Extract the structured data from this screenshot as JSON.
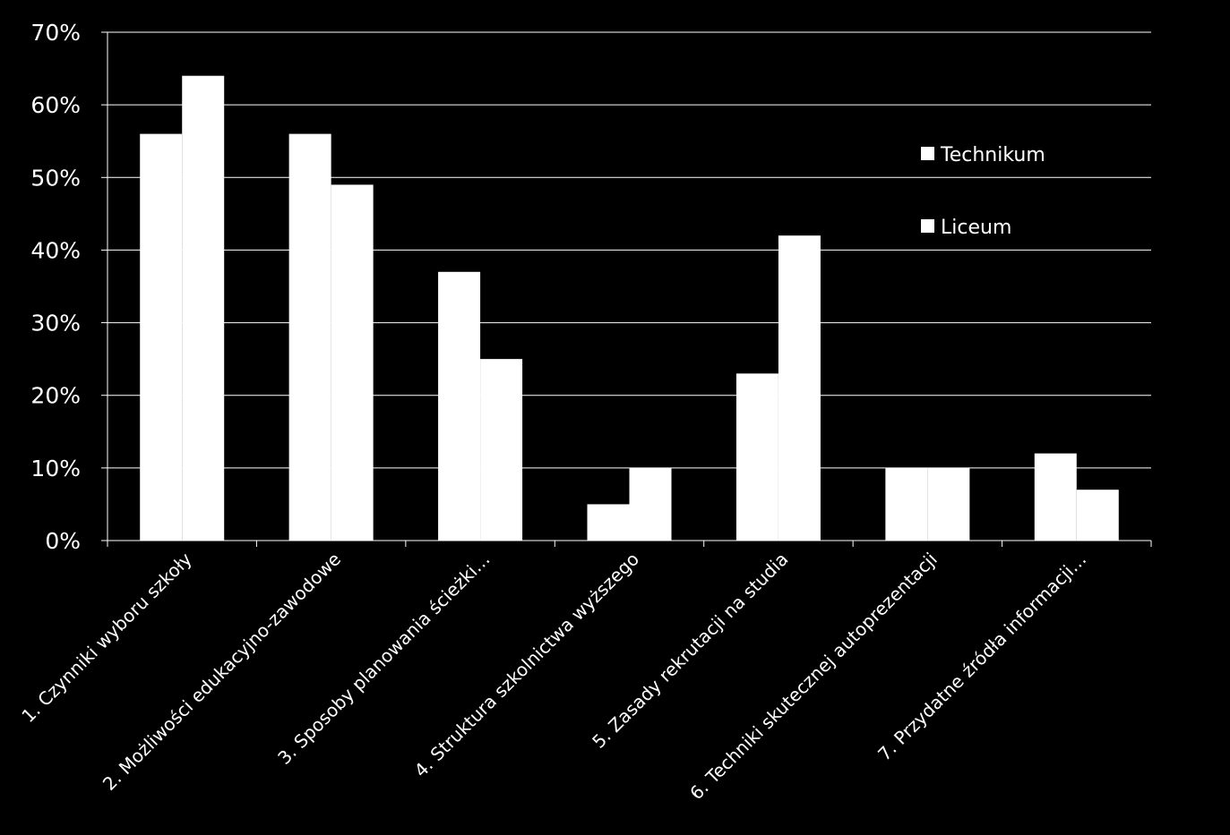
{
  "chart_data": {
    "type": "bar",
    "categories": [
      "1. Czynniki wyboru szkoły",
      "2. Możliwości edukacyjno-zawodowe",
      "3. Sposoby planowania ścieżki…",
      "4. Struktura szkolnictwa wyższego",
      "5. Zasady rekrutacji na studia",
      "6. Techniki skutecznej autoprezentacji",
      "7. Przydatne źródła informacji…"
    ],
    "series": [
      {
        "name": "Technikum",
        "values": [
          0.56,
          0.56,
          0.37,
          0.05,
          0.23,
          0.1,
          0.12
        ]
      },
      {
        "name": "Liceum",
        "values": [
          0.64,
          0.49,
          0.25,
          0.1,
          0.42,
          0.1,
          0.07
        ]
      }
    ],
    "ylim": [
      0,
      0.7
    ],
    "yticks": [
      "0%",
      "10%",
      "20%",
      "30%",
      "40%",
      "50%",
      "60%",
      "70%"
    ],
    "title": "",
    "xlabel": "",
    "ylabel": "",
    "grid": true,
    "legend_position": "top-right",
    "colors": {
      "background": "#000000",
      "bar": "#ffffff",
      "grid": "#ffffff",
      "text": "#ffffff"
    }
  }
}
